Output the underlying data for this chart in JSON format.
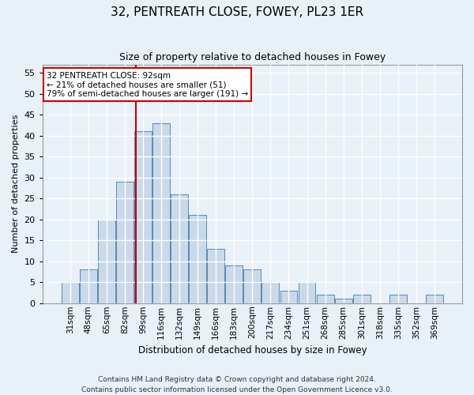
{
  "title": "32, PENTREATH CLOSE, FOWEY, PL23 1ER",
  "subtitle": "Size of property relative to detached houses in Fowey",
  "xlabel": "Distribution of detached houses by size in Fowey",
  "ylabel": "Number of detached properties",
  "categories": [
    "31sqm",
    "48sqm",
    "65sqm",
    "82sqm",
    "99sqm",
    "116sqm",
    "132sqm",
    "149sqm",
    "166sqm",
    "183sqm",
    "200sqm",
    "217sqm",
    "234sqm",
    "251sqm",
    "268sqm",
    "285sqm",
    "301sqm",
    "318sqm",
    "335sqm",
    "352sqm",
    "369sqm"
  ],
  "values": [
    5,
    8,
    20,
    29,
    41,
    43,
    26,
    21,
    13,
    9,
    8,
    5,
    3,
    5,
    2,
    1,
    2,
    0,
    2,
    0,
    2
  ],
  "bar_color": "#c9d9ea",
  "bar_edge_color": "#5a8ab5",
  "property_line_color": "#cc0000",
  "annotation_text": "32 PENTREATH CLOSE: 92sqm\n← 21% of detached houses are smaller (51)\n79% of semi-detached houses are larger (191) →",
  "annotation_box_color": "#ffffff",
  "annotation_box_edge_color": "#cc0000",
  "ylim": [
    0,
    57
  ],
  "yticks": [
    0,
    5,
    10,
    15,
    20,
    25,
    30,
    35,
    40,
    45,
    50,
    55
  ],
  "footer": "Contains HM Land Registry data © Crown copyright and database right 2024.\nContains public sector information licensed under the Open Government Licence v3.0.",
  "bg_color": "#e8f0f8",
  "plot_bg_color": "#e8f0f8",
  "grid_color": "#ffffff",
  "title_fontsize": 11,
  "subtitle_fontsize": 9,
  "xlabel_fontsize": 8.5,
  "ylabel_fontsize": 8,
  "tick_fontsize": 8,
  "xtick_fontsize": 7.5,
  "footer_fontsize": 6.5,
  "annot_fontsize": 7.5
}
